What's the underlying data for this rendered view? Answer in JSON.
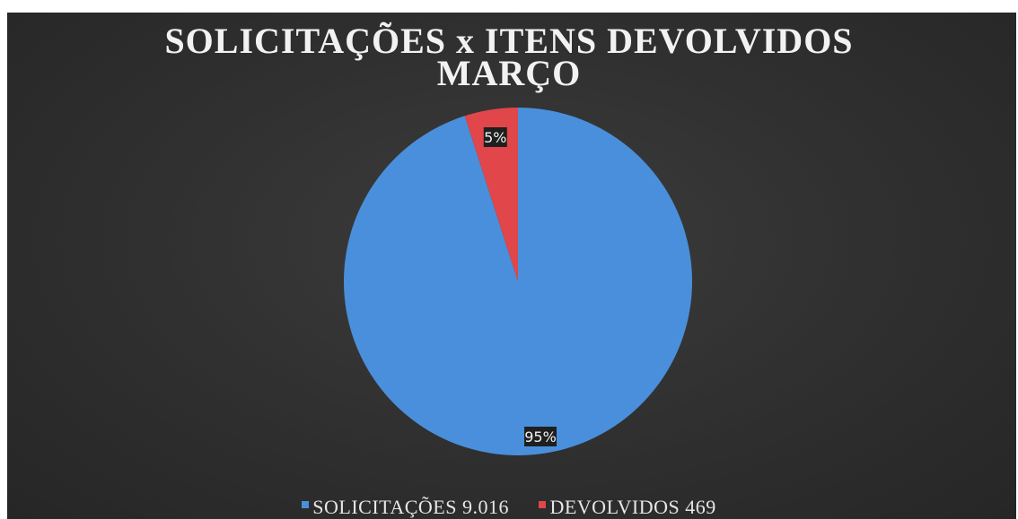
{
  "colors": {
    "background": "#2f2f2f",
    "solicitacoes": "#4a8fdb",
    "devolvidos": "#e0464a",
    "text": "#f2f2f2"
  },
  "chart_data": {
    "type": "pie",
    "title_line1": "SOLICITAÇÕES x ITENS DEVOLVIDOS",
    "title_line2": "MARÇO",
    "legend_position": "bottom",
    "slices": [
      {
        "name": "SOLICITAÇÕES",
        "value": 9016,
        "value_label": "9.016",
        "percent": 95,
        "percent_label": "95%",
        "legend_text": "SOLICITAÇÕES 9.016",
        "color": "#4a8fdb"
      },
      {
        "name": "DEVOLVIDOS",
        "value": 469,
        "value_label": "469",
        "percent": 5,
        "percent_label": "5%",
        "legend_text": "DEVOLVIDOS 469",
        "color": "#e0464a"
      }
    ]
  }
}
